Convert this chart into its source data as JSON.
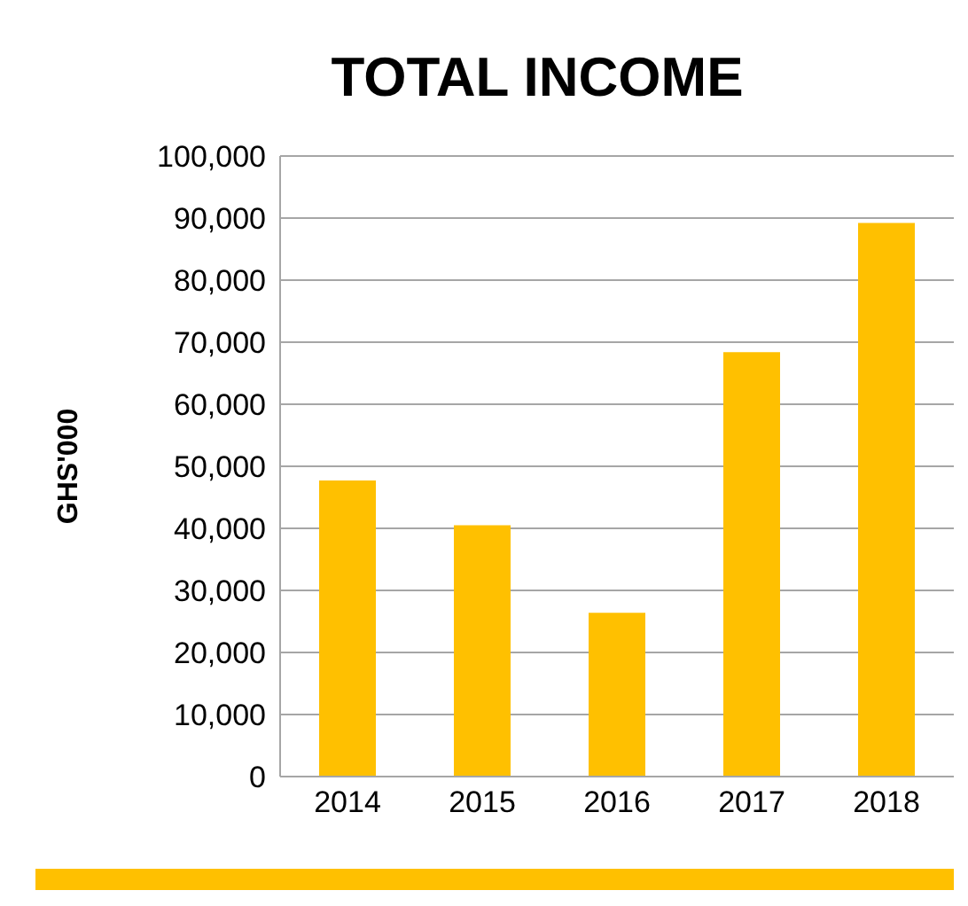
{
  "chart_data": {
    "type": "bar",
    "title": "TOTAL INCOME",
    "ylabel": "GHS'000",
    "categories": [
      "2014",
      "2015",
      "2016",
      "2017",
      "2018"
    ],
    "values": [
      47700,
      40500,
      26400,
      68400,
      89200
    ],
    "color": "#ffc000",
    "ylim": [
      0,
      100000
    ],
    "yticks": [
      0,
      {
        "value": 10000,
        "label": "10,000"
      },
      {
        "value": 20000,
        "label": "20,000"
      },
      {
        "value": 30000,
        "label": "30,000"
      },
      {
        "value": 40000,
        "label": "40,000"
      },
      {
        "value": 50000,
        "label": "50,000"
      },
      {
        "value": 60000,
        "label": "60,000"
      },
      {
        "value": 70000,
        "label": "70,000"
      },
      {
        "value": 80000,
        "label": "80,000"
      },
      {
        "value": 90000,
        "label": "90,000"
      },
      {
        "value": 100000,
        "label": "100,000"
      }
    ],
    "grid": "y"
  }
}
